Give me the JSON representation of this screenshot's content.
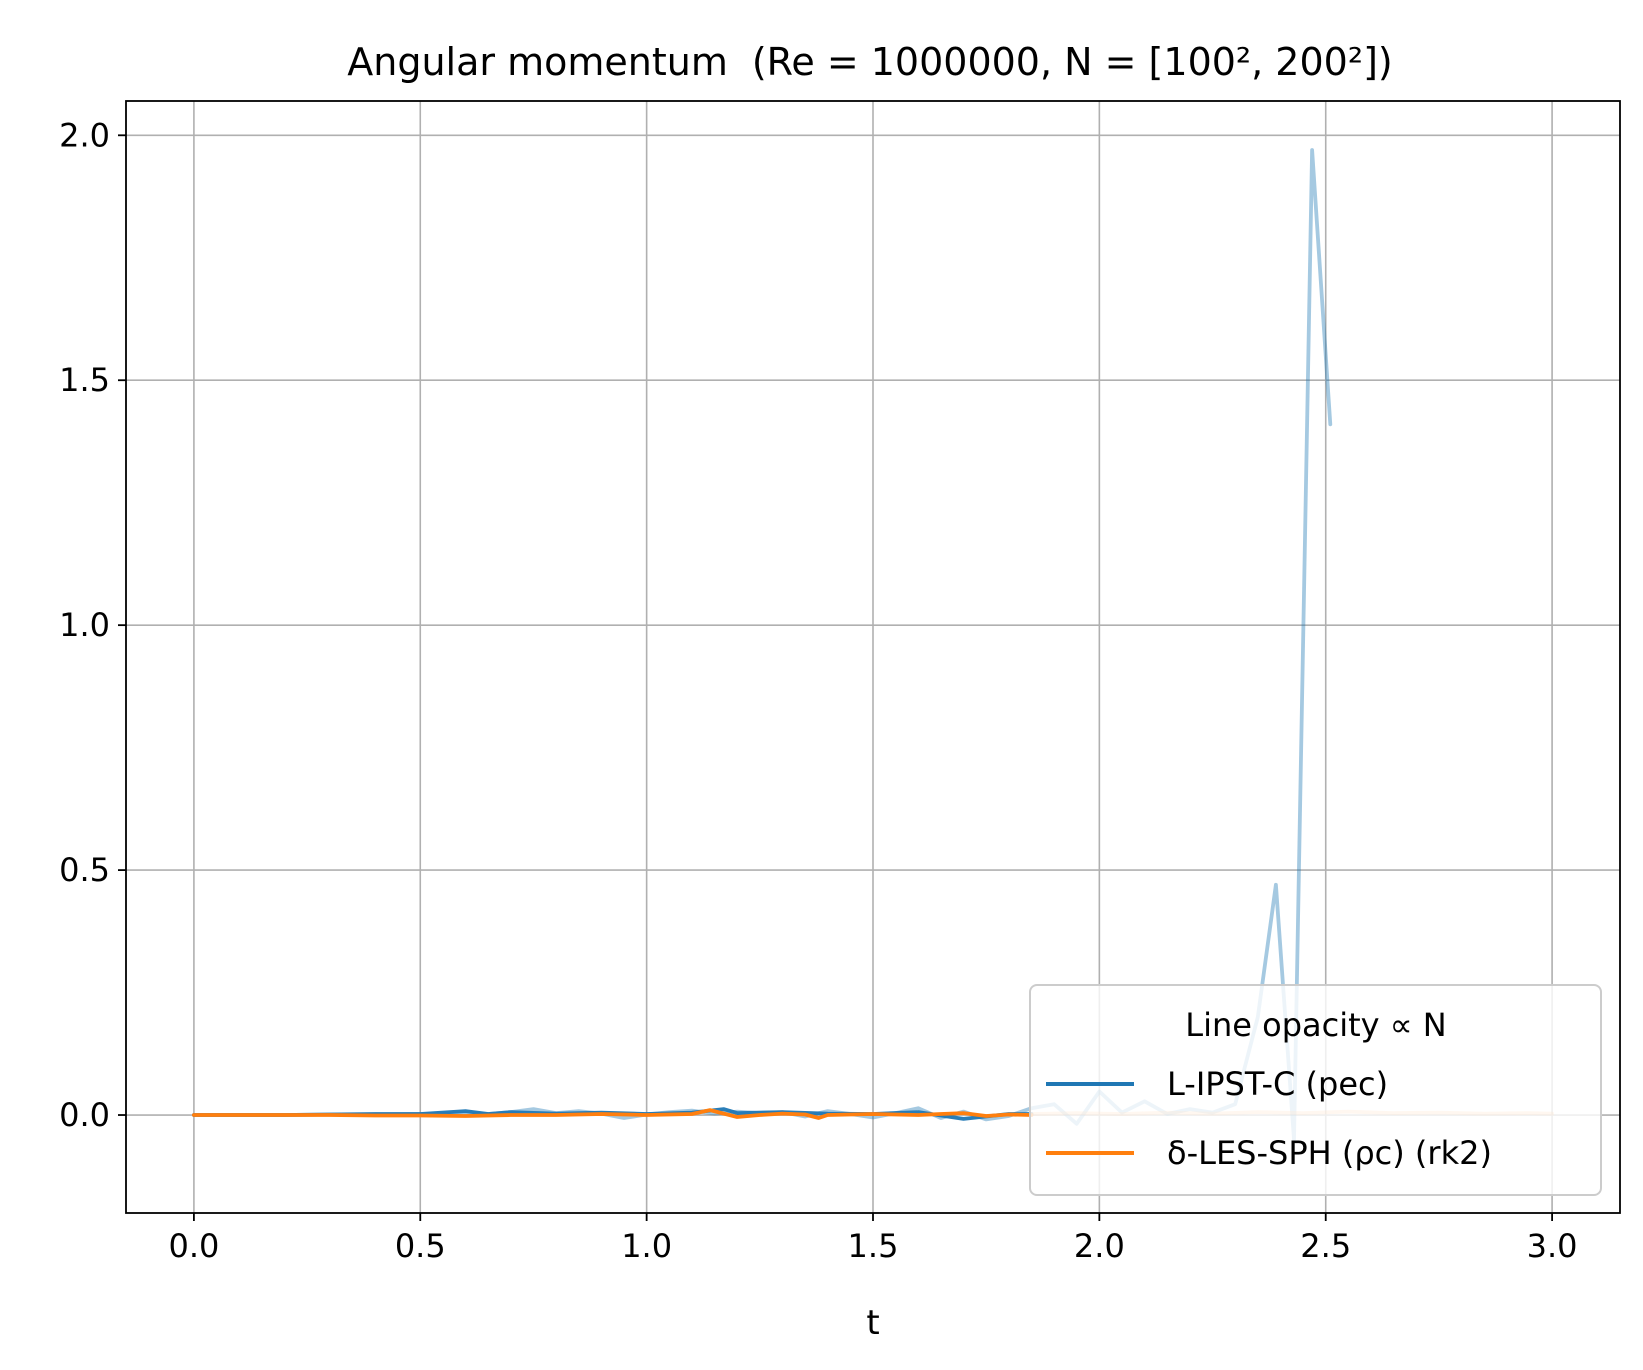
{
  "chart_data": {
    "type": "line",
    "title": "Angular momentum",
    "title_params": "(Re = 1000000, N = [100², 200²])",
    "xlabel": "t",
    "ylabel": "",
    "xlim": [
      -0.15,
      3.15
    ],
    "ylim": [
      -0.2,
      2.07
    ],
    "xticks": [
      "0.0",
      "0.5",
      "1.0",
      "1.5",
      "2.0",
      "2.5",
      "3.0"
    ],
    "yticks": [
      "0.0",
      "0.5",
      "1.0",
      "1.5",
      "2.0"
    ],
    "grid": true,
    "legend": {
      "title": "Line opacity ∝ N",
      "location": "lower right",
      "entries": [
        "L-IPST-C (pec)",
        "δ-LES-SPH (ρc) (rk2)"
      ]
    },
    "series": [
      {
        "name": "L-IPST-C (pec)",
        "color": "#1f77b4",
        "resolution": "100²",
        "opacity": 0.4,
        "points": [
          [
            0,
            0
          ],
          [
            0.1,
            0
          ],
          [
            0.2,
            0
          ],
          [
            0.3,
            0.001
          ],
          [
            0.4,
            0.001
          ],
          [
            0.5,
            0.002
          ],
          [
            0.6,
            0.004
          ],
          [
            0.65,
            0.002
          ],
          [
            0.7,
            0.006
          ],
          [
            0.75,
            0.012
          ],
          [
            0.8,
            0.004
          ],
          [
            0.85,
            0.008
          ],
          [
            0.9,
            0.003
          ],
          [
            0.95,
            -0.006
          ],
          [
            1.0,
            0.001
          ],
          [
            1.05,
            0.006
          ],
          [
            1.1,
            0.009
          ],
          [
            1.15,
            0.003
          ],
          [
            1.2,
            0.007
          ],
          [
            1.25,
            0.004
          ],
          [
            1.3,
            0.006
          ],
          [
            1.35,
            -0.003
          ],
          [
            1.4,
            0.008
          ],
          [
            1.45,
            0.002
          ],
          [
            1.5,
            -0.005
          ],
          [
            1.55,
            0.004
          ],
          [
            1.6,
            0.014
          ],
          [
            1.65,
            -0.006
          ],
          [
            1.7,
            0.007
          ],
          [
            1.75,
            -0.009
          ],
          [
            1.8,
            -0.002
          ],
          [
            1.85,
            0.014
          ],
          [
            1.9,
            0.022
          ],
          [
            1.95,
            -0.018
          ],
          [
            2.0,
            0.048
          ],
          [
            2.05,
            0.005
          ],
          [
            2.1,
            0.028
          ],
          [
            2.15,
            0.002
          ],
          [
            2.2,
            0.012
          ],
          [
            2.25,
            0.005
          ],
          [
            2.3,
            0.022
          ],
          [
            2.35,
            0.2
          ],
          [
            2.39,
            0.47
          ],
          [
            2.43,
            -0.05
          ],
          [
            2.47,
            1.97
          ],
          [
            2.51,
            1.41
          ]
        ]
      },
      {
        "name": "L-IPST-C (pec)",
        "color": "#1f77b4",
        "resolution": "200²",
        "opacity": 0.95,
        "points": [
          [
            0,
            0
          ],
          [
            0.1,
            0
          ],
          [
            0.2,
            0
          ],
          [
            0.3,
            0.001
          ],
          [
            0.4,
            0.002
          ],
          [
            0.5,
            0.002
          ],
          [
            0.6,
            0.008
          ],
          [
            0.65,
            0.002
          ],
          [
            0.7,
            0.006
          ],
          [
            0.8,
            0.003
          ],
          [
            0.9,
            0.005
          ],
          [
            1.0,
            0.002
          ],
          [
            1.1,
            0.005
          ],
          [
            1.17,
            0.012
          ],
          [
            1.2,
            0.004
          ],
          [
            1.3,
            0.006
          ],
          [
            1.4,
            0.003
          ],
          [
            1.5,
            0.002
          ],
          [
            1.6,
            0.006
          ],
          [
            1.7,
            -0.008
          ],
          [
            1.8,
            0.002
          ],
          [
            1.85,
            0.002
          ]
        ]
      },
      {
        "name": "δ-LES-SPH (ρc) (rk2)",
        "color": "#ff7f0e",
        "resolution": "100²",
        "opacity": 0.3,
        "points": [
          [
            1.85,
            0.002
          ],
          [
            1.95,
            0.004
          ],
          [
            2.05,
            0.002
          ],
          [
            2.15,
            0.005
          ],
          [
            2.25,
            0.003
          ],
          [
            2.35,
            0.006
          ],
          [
            2.45,
            0.004
          ],
          [
            2.55,
            0.007
          ],
          [
            2.65,
            0.004
          ],
          [
            2.75,
            0.005
          ],
          [
            2.85,
            0.003
          ],
          [
            2.95,
            0.004
          ],
          [
            3.0,
            0.003
          ]
        ]
      },
      {
        "name": "δ-LES-SPH (ρc) (rk2)",
        "color": "#ff7f0e",
        "resolution": "200²",
        "opacity": 1.0,
        "points": [
          [
            0,
            0
          ],
          [
            0.1,
            0
          ],
          [
            0.2,
            0
          ],
          [
            0.3,
            0
          ],
          [
            0.4,
            -0.001
          ],
          [
            0.5,
            -0.001
          ],
          [
            0.6,
            -0.002
          ],
          [
            0.7,
            0
          ],
          [
            0.8,
            0
          ],
          [
            0.9,
            0.002
          ],
          [
            1.0,
            0
          ],
          [
            1.1,
            0.002
          ],
          [
            1.14,
            0.01
          ],
          [
            1.2,
            -0.004
          ],
          [
            1.25,
            0
          ],
          [
            1.3,
            0.003
          ],
          [
            1.35,
            0.001
          ],
          [
            1.38,
            -0.006
          ],
          [
            1.4,
            0
          ],
          [
            1.5,
            0.002
          ],
          [
            1.6,
            0
          ],
          [
            1.65,
            0.002
          ],
          [
            1.7,
            0.004
          ],
          [
            1.75,
            -0.002
          ],
          [
            1.8,
            0.001
          ],
          [
            1.85,
            0
          ]
        ]
      }
    ]
  }
}
